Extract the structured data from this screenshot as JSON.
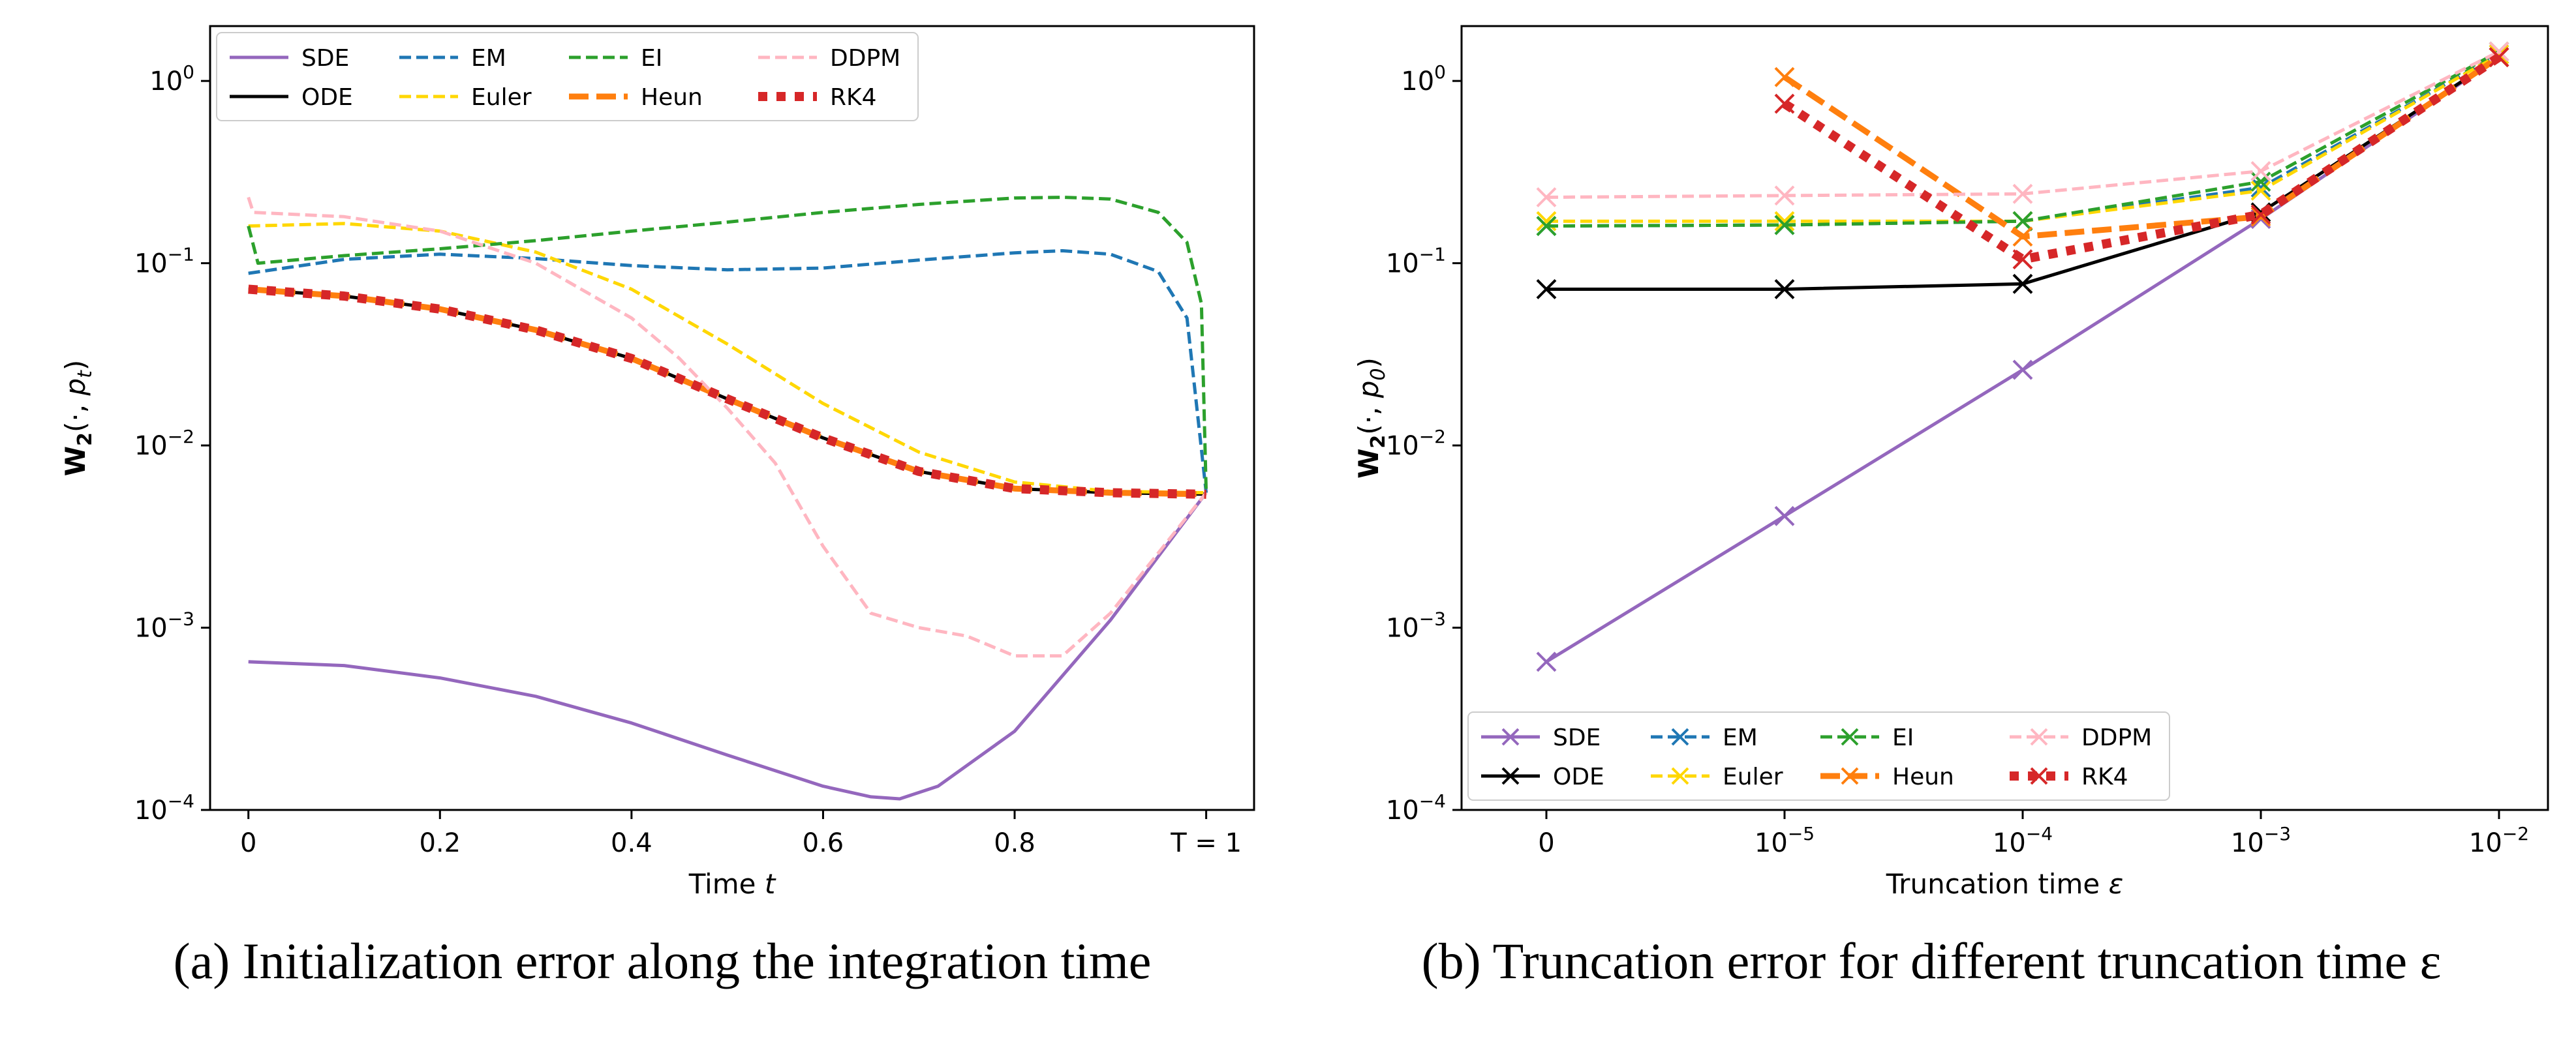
{
  "chart_data": [
    {
      "type": "line",
      "xlabel": "Time t",
      "ylabel": "W2(·, p_t)",
      "yscale": "log",
      "ylim": [
        0.0001,
        2
      ],
      "xlim": [
        -0.04,
        1.05
      ],
      "xticks": [
        0,
        0.2,
        0.4,
        0.6,
        0.8,
        1.0
      ],
      "xtick_labels": [
        "0",
        "0.2",
        "0.4",
        "0.6",
        "0.8",
        "T = 1"
      ],
      "yticks": [
        1,
        0.1,
        0.01,
        0.001,
        0.0001
      ],
      "ytick_exponents": [
        "0",
        "−1",
        "−2",
        "−3",
        "−4"
      ],
      "legend_position": "upper-left",
      "caption": "(a) Initialization error along the integration time",
      "series": [
        {
          "name": "SDE",
          "color": "#9467bd",
          "style": "solid",
          "x": [
            0,
            0.1,
            0.2,
            0.3,
            0.4,
            0.5,
            0.6,
            0.65,
            0.68,
            0.72,
            0.8,
            0.9,
            1.0
          ],
          "y": [
            0.00065,
            0.00062,
            0.00053,
            0.00042,
            0.0003,
            0.0002,
            0.000135,
            0.000118,
            0.000115,
            0.000135,
            0.00027,
            0.0011,
            0.0055
          ]
        },
        {
          "name": "ODE",
          "color": "#000000",
          "style": "solid",
          "x": [
            0,
            0.1,
            0.2,
            0.3,
            0.4,
            0.5,
            0.6,
            0.7,
            0.8,
            0.9,
            1.0
          ],
          "y": [
            0.072,
            0.066,
            0.056,
            0.043,
            0.03,
            0.018,
            0.011,
            0.0072,
            0.0058,
            0.0055,
            0.0054
          ]
        },
        {
          "name": "EM",
          "color": "#1f77b4",
          "style": "dashed",
          "x": [
            0,
            0.1,
            0.2,
            0.3,
            0.4,
            0.5,
            0.6,
            0.7,
            0.8,
            0.85,
            0.9,
            0.95,
            0.98,
            1.0
          ],
          "y": [
            0.088,
            0.105,
            0.112,
            0.106,
            0.097,
            0.092,
            0.094,
            0.104,
            0.114,
            0.117,
            0.112,
            0.09,
            0.05,
            0.0055
          ]
        },
        {
          "name": "Euler",
          "color": "#ffd700",
          "style": "dashed",
          "x": [
            0,
            0.1,
            0.2,
            0.3,
            0.4,
            0.5,
            0.6,
            0.7,
            0.8,
            0.9,
            1.0
          ],
          "y": [
            0.16,
            0.165,
            0.15,
            0.115,
            0.072,
            0.036,
            0.017,
            0.0092,
            0.0063,
            0.0056,
            0.0055
          ]
        },
        {
          "name": "EI",
          "color": "#2ca02c",
          "style": "dashed",
          "x": [
            0,
            0.01,
            0.1,
            0.2,
            0.3,
            0.4,
            0.5,
            0.6,
            0.7,
            0.8,
            0.85,
            0.9,
            0.95,
            0.98,
            0.995,
            1.0
          ],
          "y": [
            0.16,
            0.1,
            0.11,
            0.12,
            0.133,
            0.15,
            0.168,
            0.19,
            0.21,
            0.228,
            0.23,
            0.225,
            0.19,
            0.13,
            0.06,
            0.0055
          ]
        },
        {
          "name": "Heun",
          "color": "#ff7f0e",
          "style": "dashed-thick",
          "x": [
            0,
            0.1,
            0.2,
            0.3,
            0.4,
            0.5,
            0.6,
            0.7,
            0.8,
            0.9,
            1.0
          ],
          "y": [
            0.072,
            0.066,
            0.056,
            0.043,
            0.03,
            0.018,
            0.011,
            0.0072,
            0.0058,
            0.0055,
            0.0054
          ]
        },
        {
          "name": "DDPM",
          "color": "#ffb6c1",
          "style": "dashed",
          "x": [
            0,
            0.005,
            0.1,
            0.2,
            0.3,
            0.4,
            0.45,
            0.5,
            0.55,
            0.6,
            0.65,
            0.7,
            0.75,
            0.8,
            0.85,
            0.9,
            1.0
          ],
          "y": [
            0.23,
            0.19,
            0.18,
            0.15,
            0.1,
            0.05,
            0.03,
            0.016,
            0.008,
            0.0028,
            0.0012,
            0.001,
            0.0009,
            0.0007,
            0.0007,
            0.0012,
            0.0055
          ]
        },
        {
          "name": "RK4",
          "color": "#d62728",
          "style": "dotted-thick",
          "x": [
            0,
            0.1,
            0.2,
            0.3,
            0.4,
            0.5,
            0.6,
            0.7,
            0.8,
            0.9,
            1.0
          ],
          "y": [
            0.072,
            0.066,
            0.056,
            0.043,
            0.03,
            0.018,
            0.011,
            0.0072,
            0.0058,
            0.0055,
            0.0054
          ]
        }
      ]
    },
    {
      "type": "line",
      "xlabel": "Truncation time ε",
      "ylabel": "W2(·, p_0)",
      "yscale": "log",
      "ylim": [
        0.0001,
        2
      ],
      "categories": [
        "0",
        "1e-5",
        "1e-4",
        "1e-3",
        "1e-2"
      ],
      "xtick_main": [
        "0",
        "10",
        "10",
        "10",
        "10"
      ],
      "xtick_exponents": [
        "",
        "−5",
        "−4",
        "−3",
        "−2"
      ],
      "yticks": [
        1,
        0.1,
        0.01,
        0.001,
        0.0001
      ],
      "ytick_exponents": [
        "0",
        "−1",
        "−2",
        "−3",
        "−4"
      ],
      "legend_position": "lower-left",
      "markers": "x",
      "caption": "(b) Truncation error for different truncation time ε",
      "series": [
        {
          "name": "SDE",
          "color": "#9467bd",
          "style": "solid",
          "values": [
            0.00065,
            0.0041,
            0.026,
            0.175,
            1.35
          ]
        },
        {
          "name": "ODE",
          "color": "#000000",
          "style": "solid",
          "values": [
            0.072,
            0.072,
            0.077,
            0.19,
            1.35
          ]
        },
        {
          "name": "EM",
          "color": "#1f77b4",
          "style": "dashed",
          "values": [
            0.16,
            0.162,
            0.17,
            0.26,
            1.4
          ]
        },
        {
          "name": "Euler",
          "color": "#ffd700",
          "style": "dashed",
          "values": [
            0.17,
            0.17,
            0.17,
            0.25,
            1.4
          ]
        },
        {
          "name": "EI",
          "color": "#2ca02c",
          "style": "dashed",
          "values": [
            0.16,
            0.162,
            0.17,
            0.28,
            1.45
          ]
        },
        {
          "name": "Heun",
          "color": "#ff7f0e",
          "style": "dashed-thick",
          "values": [
            null,
            1.05,
            0.14,
            0.18,
            1.35
          ]
        },
        {
          "name": "DDPM",
          "color": "#ffb6c1",
          "style": "dashed",
          "values": [
            0.23,
            0.235,
            0.24,
            0.32,
            1.45
          ]
        },
        {
          "name": "RK4",
          "color": "#d62728",
          "style": "dotted-thick",
          "values": [
            null,
            0.75,
            0.105,
            0.185,
            1.35
          ]
        }
      ]
    }
  ]
}
